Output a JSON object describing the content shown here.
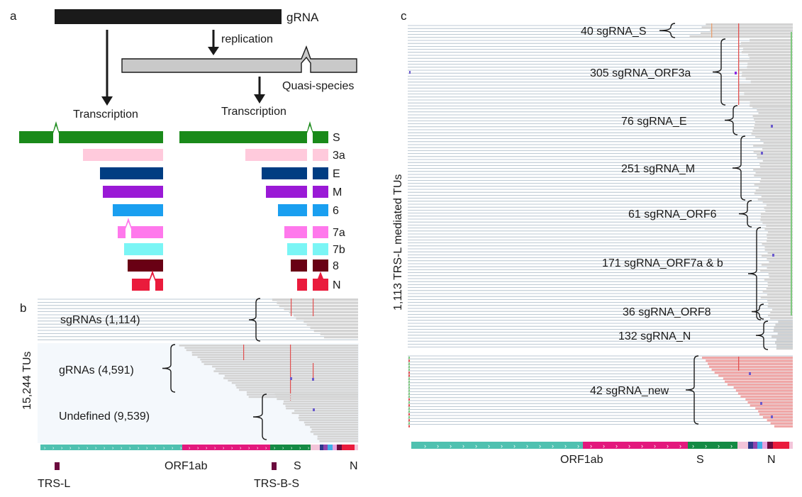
{
  "colors": {
    "S": "#1a8a1a",
    "3a": "#ffcadc",
    "E": "#003d82",
    "M": "#9a19d6",
    "6": "#1a9ff0",
    "7a": "#ff78ec",
    "7b": "#7af5f5",
    "8": "#690014",
    "N": "#ea1b3c",
    "gray_read": "#d3d3d3",
    "line": "#a9b9c6",
    "pink_read": "#f0a7a7",
    "dark_bar": "#1a1a1a",
    "light_bar": "#c9c9c9",
    "trs": "#6b0b3e",
    "orf1ab": "#4fc1b0",
    "orf_pink": "#e3197d",
    "orf_s": "#148a44"
  },
  "panel_a": {
    "letter": "a",
    "grna_label": "gRNA",
    "replication_label": "replication",
    "quasi_label": "Quasi-species",
    "transcription_left": "Transcription",
    "transcription_right": "Transcription",
    "sg_labels": [
      "S",
      "3a",
      "E",
      "M",
      "6",
      "7a",
      "7b",
      "8",
      "N"
    ]
  },
  "panel_b": {
    "letter": "b",
    "y_title": "15,244 TUs",
    "groups": [
      "sgRNAs (1,114)",
      "gRNAs (4,591)",
      "Undefined (9,539)"
    ],
    "genome_labels": [
      "ORF1ab",
      "S",
      "N"
    ],
    "trs_labels": [
      "TRS-L",
      "TRS-B-S"
    ]
  },
  "panel_c": {
    "letter": "c",
    "y_title": "1,113 TRS-L mediated TUs",
    "groups": [
      "40 sgRNA_S",
      "305 sgRNA_ORF3a",
      "76 sgRNA_E",
      "251 sgRNA_M",
      "61 sgRNA_ORF6",
      "171 sgRNA_ORF7a & b",
      "36 sgRNA_ORF8",
      "132 sgRNA_N",
      "42 sgRNA_new"
    ],
    "genome_labels": [
      "ORF1ab",
      "S",
      "N"
    ]
  }
}
